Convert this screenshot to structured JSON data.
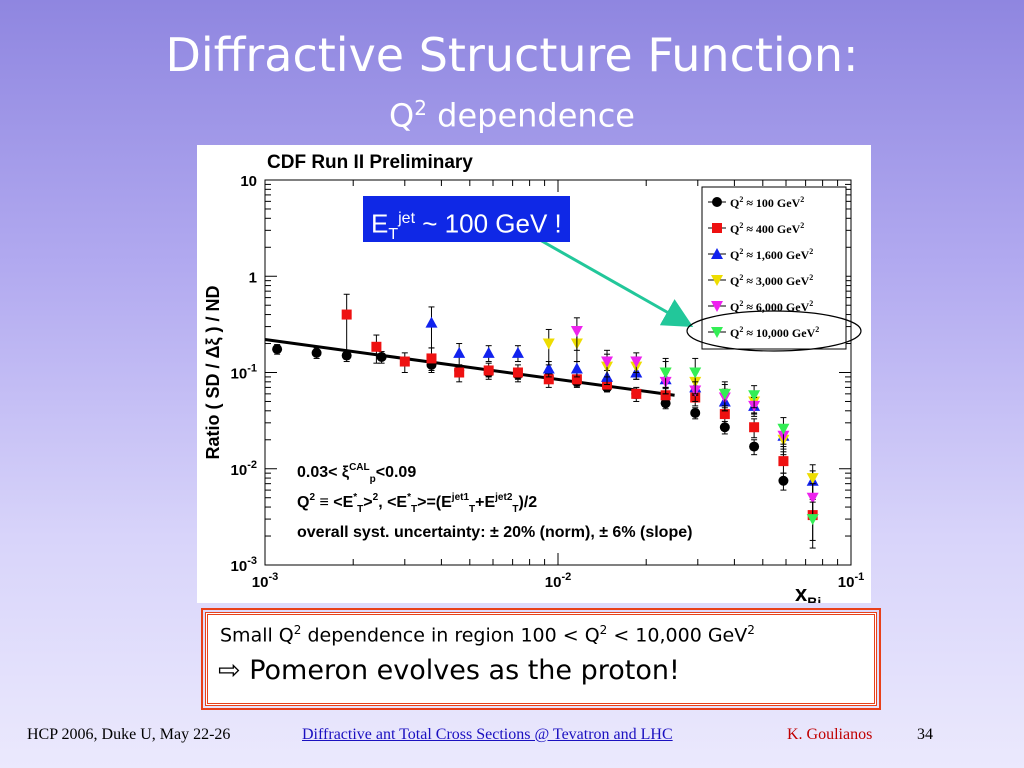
{
  "slide": {
    "title": "Diffractive Structure Function:",
    "subtitle_q": "Q",
    "subtitle_sup": "2",
    "subtitle_rest": " dependence"
  },
  "callout": {
    "e": "E",
    "sub": "T",
    "sup": "jet",
    "rest": " ~ 100 GeV !",
    "color": "#0f28e6"
  },
  "conclusion": {
    "line1_a": "Small Q",
    "line1_sup1": "2",
    "line1_b": " dependence in region 100 < Q",
    "line1_sup2": "2",
    "line1_c": " < 10,000 GeV",
    "line1_sup3": "2",
    "line2_arrow": "⇨",
    "line2_text": " Pomeron evolves as the proton!",
    "border_color": "#e8401a"
  },
  "footer": {
    "conference": "HCP 2006, Duke U, May 22-26",
    "link": "Diffractive ant Total Cross Sections @ Tevatron and LHC",
    "author": "K. Goulianos",
    "page": "34"
  },
  "chart_data": {
    "type": "scatter",
    "title": "CDF Run II Preliminary",
    "xlabel_main": "x",
    "xlabel_sub": "Bj",
    "ylabel": "Ratio  ( SD /  Δξ ) / ND",
    "xscale": "log",
    "yscale": "log",
    "xlim": [
      0.001,
      0.1
    ],
    "ylim": [
      0.001,
      10
    ],
    "x_ticks": [
      {
        "value": 0.001,
        "base": "10",
        "exp": "-3"
      },
      {
        "value": 0.01,
        "base": "10",
        "exp": "-2"
      },
      {
        "value": 0.1,
        "base": "10",
        "exp": "-1"
      }
    ],
    "y_ticks": [
      {
        "value": 0.001,
        "base": "10",
        "exp": "-3"
      },
      {
        "value": 0.01,
        "base": "10",
        "exp": "-2"
      },
      {
        "value": 0.1,
        "base": "10",
        "exp": "-1"
      },
      {
        "value": 1,
        "base": "1",
        "exp": ""
      },
      {
        "value": 10,
        "base": "10",
        "exp": ""
      }
    ],
    "legend_position": "top-right",
    "fit_line": {
      "x": [
        0.001,
        0.025
      ],
      "y": [
        0.22,
        0.058
      ]
    },
    "annotations": [
      {
        "parts": [
          {
            "t": "0.03< ξ"
          },
          {
            "t": "CAL",
            "sup": true
          },
          {
            "t": "p",
            "sub": true
          },
          {
            "t": "<0.09"
          }
        ]
      },
      {
        "parts": [
          {
            "t": "Q"
          },
          {
            "t": "2",
            "sup": true
          },
          {
            "t": " ≡ <E"
          },
          {
            "t": "*",
            "sup": true
          },
          {
            "t": "T",
            "sub": true
          },
          {
            "t": ">"
          },
          {
            "t": "2",
            "sup": true
          },
          {
            "t": ",   <E"
          },
          {
            "t": "*",
            "sup": true
          },
          {
            "t": "T",
            "sub": true
          },
          {
            "t": ">=(E"
          },
          {
            "t": "jet1",
            "sup": true
          },
          {
            "t": "T",
            "sub": true
          },
          {
            "t": "+E"
          },
          {
            "t": "jet2",
            "sup": true
          },
          {
            "t": "T",
            "sub": true
          },
          {
            "t": ")/2"
          }
        ]
      },
      {
        "parts": [
          {
            "t": "overall syst. uncertainty: ± 20% (norm), ± 6% (slope)"
          }
        ]
      }
    ],
    "series": [
      {
        "name_q": "Q",
        "name_sup": "2",
        "name_approx": " ≈ ",
        "name_val": "100 GeV",
        "name_unit_sup": "2",
        "marker": "circle",
        "color": "#000000",
        "x": [
          0.0011,
          0.0015,
          0.0019,
          0.0025,
          0.0037,
          0.0046,
          0.0058,
          0.0073,
          0.0093,
          0.0116,
          0.0147,
          0.0185,
          0.0233,
          0.0294,
          0.0371,
          0.0467,
          0.0588
        ],
        "y": [
          0.175,
          0.16,
          0.15,
          0.145,
          0.12,
          0.105,
          0.1,
          0.095,
          0.09,
          0.08,
          0.07,
          0.06,
          0.048,
          0.038,
          0.027,
          0.017,
          0.0075
        ],
        "err": [
          0.02,
          0.02,
          0.02,
          0.02,
          0.015,
          0.01,
          0.01,
          0.01,
          0.01,
          0.008,
          0.007,
          0.006,
          0.006,
          0.005,
          0.004,
          0.003,
          0.0015
        ]
      },
      {
        "name_q": "Q",
        "name_sup": "2",
        "name_approx": " ≈ ",
        "name_val": "400 GeV",
        "name_unit_sup": "2",
        "marker": "square",
        "color": "#ee1111",
        "x": [
          0.0019,
          0.0024,
          0.003,
          0.0037,
          0.0046,
          0.0058,
          0.0073,
          0.0093,
          0.0116,
          0.0147,
          0.0185,
          0.0233,
          0.0294,
          0.0371,
          0.0467,
          0.0588,
          0.074
        ],
        "y": [
          0.4,
          0.185,
          0.13,
          0.14,
          0.1,
          0.105,
          0.1,
          0.085,
          0.085,
          0.075,
          0.06,
          0.058,
          0.055,
          0.037,
          0.027,
          0.012,
          0.0033
        ],
        "err": [
          0.25,
          0.06,
          0.03,
          0.04,
          0.02,
          0.02,
          0.02,
          0.015,
          0.015,
          0.012,
          0.01,
          0.01,
          0.01,
          0.008,
          0.006,
          0.003,
          0.0015
        ]
      },
      {
        "name_q": "Q",
        "name_sup": "2",
        "name_approx": " ≈ ",
        "name_val": "1,600 GeV",
        "name_unit_sup": "2",
        "marker": "triangle-up",
        "color": "#1122ee",
        "x": [
          0.0037,
          0.0046,
          0.0058,
          0.0073,
          0.0093,
          0.0116,
          0.0147,
          0.0185,
          0.0233,
          0.0294,
          0.0371,
          0.0467,
          0.0588,
          0.074
        ],
        "y": [
          0.33,
          0.16,
          0.16,
          0.16,
          0.11,
          0.11,
          0.09,
          0.1,
          0.085,
          0.07,
          0.05,
          0.045,
          0.022,
          0.0075
        ],
        "err": [
          0.15,
          0.04,
          0.03,
          0.03,
          0.02,
          0.02,
          0.015,
          0.015,
          0.015,
          0.012,
          0.01,
          0.008,
          0.005,
          0.002
        ]
      },
      {
        "name_q": "Q",
        "name_sup": "2",
        "name_approx": " ≈ ",
        "name_val": "3,000 GeV",
        "name_unit_sup": "2",
        "marker": "triangle-down",
        "color": "#eedd00",
        "x": [
          0.0093,
          0.0116,
          0.0147,
          0.0185,
          0.0233,
          0.0294,
          0.0371,
          0.0467,
          0.0588,
          0.074
        ],
        "y": [
          0.2,
          0.2,
          0.115,
          0.115,
          0.1,
          0.08,
          0.06,
          0.05,
          0.02,
          0.008
        ],
        "err": [
          0.08,
          0.07,
          0.04,
          0.03,
          0.03,
          0.02,
          0.015,
          0.012,
          0.006,
          0.003
        ]
      },
      {
        "name_q": "Q",
        "name_sup": "2",
        "name_approx": " ≈ ",
        "name_val": "6,000 GeV",
        "name_unit_sup": "2",
        "marker": "triangle-down",
        "color": "#ee22ee",
        "x": [
          0.0116,
          0.0147,
          0.0185,
          0.0233,
          0.0294,
          0.0371,
          0.0467,
          0.0588,
          0.074
        ],
        "y": [
          0.27,
          0.13,
          0.13,
          0.08,
          0.065,
          0.055,
          0.045,
          0.022,
          0.005
        ],
        "err": [
          0.1,
          0.04,
          0.03,
          0.02,
          0.015,
          0.012,
          0.01,
          0.006,
          0.002
        ]
      },
      {
        "name_q": "Q",
        "name_sup": "2",
        "name_approx": " ≈ ",
        "name_val": "10,000 GeV",
        "name_unit_sup": "2",
        "marker": "triangle-down",
        "color": "#33ee55",
        "x": [
          0.0233,
          0.0294,
          0.0371,
          0.0467,
          0.0588,
          0.074
        ],
        "y": [
          0.1,
          0.1,
          0.06,
          0.058,
          0.026,
          0.003
        ],
        "err": [
          0.04,
          0.04,
          0.02,
          0.015,
          0.008,
          0.0015
        ]
      }
    ]
  }
}
